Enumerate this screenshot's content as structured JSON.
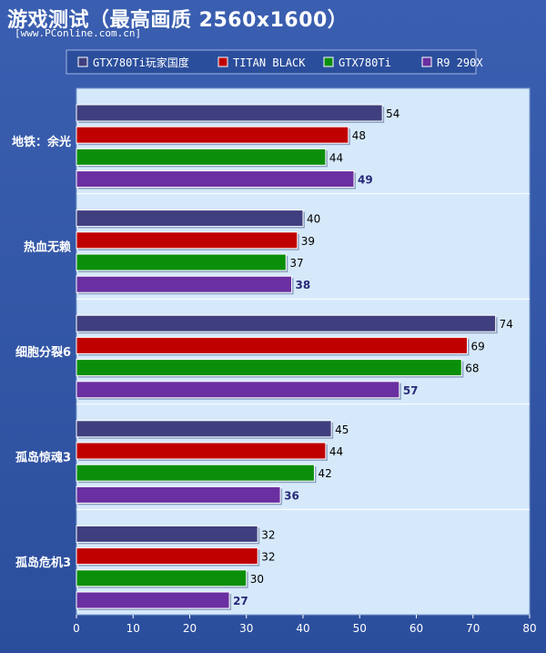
{
  "header": {
    "title": "游戏测试（最高画质 2560x1600）",
    "watermark": "[www.PConline.com.cn]"
  },
  "chart_data": {
    "type": "bar",
    "orientation": "horizontal",
    "categories": [
      "地铁：余光",
      "热血无赖",
      "细胞分裂6",
      "孤岛惊魂3",
      "孤岛危机3"
    ],
    "series": [
      {
        "name": "GTX780Ti玩家国度",
        "color": "#3f3f7f",
        "values": [
          54,
          40,
          74,
          45,
          32
        ]
      },
      {
        "name": "TITAN BLACK",
        "color": "#c00000",
        "values": [
          48,
          39,
          69,
          44,
          32
        ]
      },
      {
        "name": "GTX780Ti",
        "color": "#0b8f0b",
        "values": [
          44,
          37,
          68,
          42,
          30
        ]
      },
      {
        "name": "R9 290X",
        "color": "#6a2fa0",
        "values": [
          49,
          38,
          57,
          36,
          27
        ]
      }
    ],
    "xlim": [
      0,
      80
    ],
    "xticks": [
      0,
      10,
      20,
      30,
      40,
      50,
      60,
      70,
      80
    ],
    "legend_position": "top",
    "grid": false,
    "background": "#d6e9fb",
    "bold_value_series": "R9 290X"
  }
}
